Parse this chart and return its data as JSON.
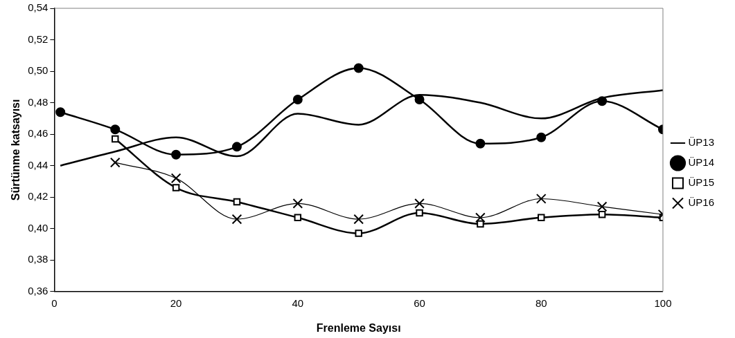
{
  "chart_data": {
    "type": "line",
    "xlabel": "Frenleme Sayısı",
    "ylabel": "Sürtünme katsayısı",
    "x": [
      1,
      10,
      20,
      30,
      40,
      50,
      60,
      70,
      80,
      90,
      100
    ],
    "xlim": [
      0,
      100
    ],
    "xticks": [
      0,
      20,
      40,
      60,
      80,
      100
    ],
    "ylim": [
      0.36,
      0.54
    ],
    "yticks": [
      {
        "value": 0.36,
        "label": "0,36"
      },
      {
        "value": 0.38,
        "label": "0,38"
      },
      {
        "value": 0.4,
        "label": "0,40"
      },
      {
        "value": 0.42,
        "label": "0,42"
      },
      {
        "value": 0.44,
        "label": "0,44"
      },
      {
        "value": 0.46,
        "label": "0,46"
      },
      {
        "value": 0.48,
        "label": "0,48"
      },
      {
        "value": 0.5,
        "label": "0,50"
      },
      {
        "value": 0.52,
        "label": "0,52"
      },
      {
        "value": 0.54,
        "label": "0,54"
      }
    ],
    "grid": false,
    "legend": "right",
    "series": [
      {
        "name": "ÜP13",
        "color": "#000000",
        "marker": "none",
        "values": [
          0.44,
          0.449,
          0.458,
          0.446,
          0.473,
          0.466,
          0.485,
          0.48,
          0.47,
          0.483,
          0.488
        ]
      },
      {
        "name": "ÜP14",
        "color": "#000000",
        "marker": "circle",
        "values": [
          0.474,
          0.463,
          0.447,
          0.452,
          0.482,
          0.502,
          0.482,
          0.454,
          0.458,
          0.481,
          0.463
        ]
      },
      {
        "name": "ÜP15",
        "color": "#000000",
        "marker": "square",
        "values": [
          null,
          0.457,
          0.426,
          0.417,
          0.407,
          0.397,
          0.41,
          0.403,
          0.407,
          0.409,
          0.407
        ]
      },
      {
        "name": "ÜP16",
        "color": "#000000",
        "marker": "cross",
        "values": [
          null,
          0.442,
          0.432,
          0.406,
          0.416,
          0.406,
          0.416,
          0.407,
          0.419,
          0.414,
          0.409
        ]
      }
    ]
  }
}
